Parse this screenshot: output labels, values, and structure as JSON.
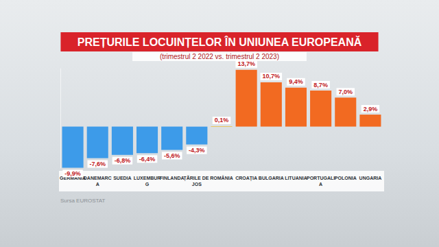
{
  "chart_data": {
    "type": "bar",
    "title": "PREȚURILE LOCUINȚELOR ÎN UNIUNEA EUROPEANĂ",
    "subtitle": "(trimestrul 2 2022 vs. trimestrul 2 2023)",
    "annotations": [
      "Sursa EUROSTAT"
    ],
    "categories": [
      "GERMANIA",
      "DANEMARCA",
      "SUEDIA",
      "LUXEMBURG",
      "FINLANDA",
      "ȚĂRILE DE JOS",
      "ROMÂNIA",
      "CROAȚIA",
      "BULGARIA",
      "LITUANIA",
      "PORTUGALIA",
      "POLONIA",
      "UNGARIA"
    ],
    "values": [
      -9.9,
      -7.6,
      -6.8,
      -6.4,
      -5.6,
      -4.3,
      0.1,
      13.7,
      10.7,
      9.4,
      8.7,
      7.0,
      2.9
    ],
    "value_labels": [
      "-9,9%",
      "-7,6%",
      "-6,8%",
      "-6,4%",
      "-5,6%",
      "-4,3%",
      "0,1%",
      "13,7%",
      "10,7%",
      "9,4%",
      "8,7%",
      "7,0%",
      "2,9%"
    ],
    "colors": [
      "#3d9be9",
      "#3d9be9",
      "#3d9be9",
      "#3d9be9",
      "#3d9be9",
      "#3d9be9",
      "#f5b400",
      "#f26a21",
      "#f26a21",
      "#f26a21",
      "#f26a21",
      "#f26a21",
      "#f26a21"
    ],
    "ylim": [
      -10,
      14
    ],
    "data_labels": true,
    "tick_labels": "x",
    "grid": false
  }
}
